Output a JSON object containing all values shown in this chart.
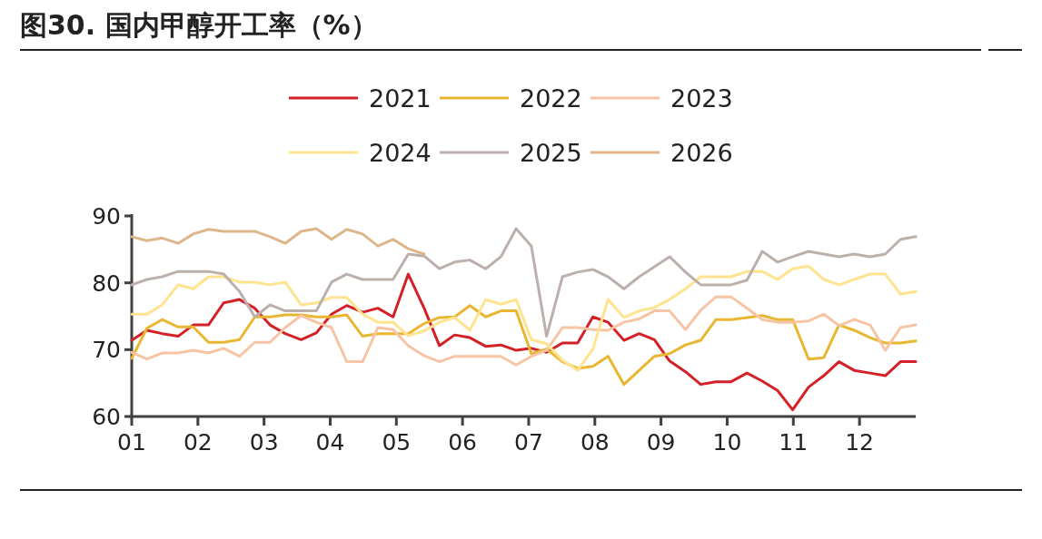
{
  "chart_data": {
    "type": "line",
    "title": "图30. 国内甲醇开工率（%）",
    "legend": "top",
    "x": [
      1,
      1.23,
      1.46,
      1.7,
      1.93,
      2.16,
      2.39,
      2.63,
      2.86,
      3.09,
      3.32,
      3.56,
      3.79,
      4.02,
      4.25,
      4.49,
      4.72,
      4.95,
      5.18,
      5.42,
      5.65,
      5.88,
      6.11,
      6.35,
      6.58,
      6.81,
      7.04,
      7.27,
      7.51,
      7.74,
      7.97,
      8.2,
      8.44,
      8.67,
      8.9,
      9.13,
      9.37,
      9.6,
      9.83,
      10.06,
      10.3,
      10.53,
      10.76,
      10.99,
      11.23,
      11.46,
      11.69,
      11.92,
      12.16,
      12.39,
      12.62,
      12.85
    ],
    "xlim": [
      1,
      12.85
    ],
    "xticks": [
      {
        "value": 1,
        "label": "01"
      },
      {
        "value": 2,
        "label": "02"
      },
      {
        "value": 3,
        "label": "03"
      },
      {
        "value": 4,
        "label": "04"
      },
      {
        "value": 5,
        "label": "05"
      },
      {
        "value": 6,
        "label": "06"
      },
      {
        "value": 7,
        "label": "07"
      },
      {
        "value": 8,
        "label": "08"
      },
      {
        "value": 9,
        "label": "09"
      },
      {
        "value": 10,
        "label": "10"
      },
      {
        "value": 11,
        "label": "11"
      },
      {
        "value": 12,
        "label": "12"
      }
    ],
    "ylim": [
      60,
      90
    ],
    "yticks": [
      60,
      70,
      80,
      90
    ],
    "series": [
      {
        "name": "2021",
        "color": "#d42027",
        "values": [
          71.4,
          72.9,
          72.4,
          72.0,
          73.7,
          73.7,
          77.0,
          77.5,
          76.2,
          73.7,
          72.4,
          71.5,
          72.5,
          75.3,
          76.6,
          75.6,
          76.2,
          74.9,
          81.3,
          76.2,
          70.6,
          72.2,
          71.8,
          70.5,
          70.7,
          69.9,
          70.2,
          69.6,
          71.0,
          71.0,
          74.9,
          74.1,
          71.4,
          72.4,
          71.5,
          68.3,
          66.7,
          64.8,
          65.2,
          65.2,
          66.5,
          65.3,
          63.9,
          61.0,
          64.4,
          66.1,
          68.2,
          66.9,
          66.5,
          66.1,
          68.2,
          68.2
        ]
      },
      {
        "name": "2022",
        "color": "#e8b631",
        "values": [
          68.7,
          73.2,
          74.5,
          73.4,
          73.4,
          71.1,
          71.1,
          71.5,
          74.9,
          74.9,
          75.2,
          75.2,
          74.9,
          74.9,
          75.2,
          72.0,
          72.4,
          72.4,
          72.4,
          73.9,
          74.8,
          74.9,
          76.6,
          74.9,
          75.8,
          75.8,
          69.4,
          70.1,
          68.2,
          67.2,
          67.5,
          69.0,
          64.8,
          66.9,
          69.0,
          69.4,
          70.7,
          71.4,
          74.5,
          74.5,
          74.8,
          75.1,
          74.5,
          74.5,
          68.6,
          68.8,
          73.7,
          72.9,
          71.8,
          71.0,
          71.0,
          71.3
        ]
      },
      {
        "name": "2023",
        "color": "#f7c4a5",
        "values": [
          69.6,
          68.6,
          69.5,
          69.5,
          69.9,
          69.5,
          70.2,
          69.0,
          71.1,
          71.1,
          73.3,
          75.1,
          74.1,
          73.3,
          68.2,
          68.2,
          73.3,
          73.0,
          70.6,
          69.1,
          68.2,
          69.0,
          69.0,
          69.0,
          69.0,
          67.7,
          69.0,
          69.9,
          73.3,
          73.3,
          73.0,
          72.9,
          74.1,
          74.6,
          75.8,
          75.8,
          73.0,
          75.9,
          77.9,
          77.9,
          76.2,
          74.5,
          74.1,
          74.1,
          74.3,
          75.3,
          73.6,
          74.5,
          73.7,
          69.9,
          73.3,
          73.7
        ]
      },
      {
        "name": "2024",
        "color": "#ffe38f",
        "values": [
          75.3,
          75.3,
          76.7,
          79.7,
          79.1,
          80.9,
          80.9,
          80.1,
          80.1,
          79.7,
          80.1,
          76.7,
          77.0,
          77.8,
          77.8,
          75.3,
          74.1,
          74.1,
          72.1,
          72.8,
          74.1,
          74.8,
          72.9,
          77.5,
          76.8,
          77.5,
          71.5,
          70.9,
          68.4,
          66.9,
          70.1,
          77.5,
          74.8,
          75.8,
          76.3,
          77.5,
          79.1,
          80.9,
          80.9,
          80.9,
          81.7,
          81.7,
          80.5,
          82.1,
          82.5,
          80.5,
          79.7,
          80.5,
          81.3,
          81.3,
          78.3,
          78.7
        ]
      },
      {
        "name": "2025",
        "color": "#bcb0ad",
        "values": [
          79.7,
          80.5,
          80.9,
          81.7,
          81.7,
          81.7,
          81.3,
          78.7,
          74.9,
          76.7,
          75.8,
          75.8,
          75.8,
          80.1,
          81.3,
          80.5,
          80.5,
          80.5,
          84.3,
          84.0,
          82.1,
          83.1,
          83.4,
          82.1,
          83.9,
          88.1,
          85.5,
          72.0,
          80.9,
          81.6,
          82.0,
          80.9,
          79.1,
          80.9,
          82.4,
          83.9,
          81.6,
          79.7,
          79.7,
          79.7,
          80.4,
          84.7,
          83.1,
          83.9,
          84.7,
          84.3,
          83.9,
          84.3,
          83.9,
          84.3,
          86.5,
          86.9
        ]
      },
      {
        "name": "2026",
        "color": "#ddb68a",
        "x": [
          1,
          1.23,
          1.46,
          1.7,
          1.93,
          2.16,
          2.39,
          2.63,
          2.86,
          3.09,
          3.32,
          3.56,
          3.79,
          4.02,
          4.25,
          4.49,
          4.72,
          4.95,
          5.18,
          5.42
        ],
        "values": [
          86.9,
          86.3,
          86.7,
          85.9,
          87.3,
          88.0,
          87.7,
          87.7,
          87.7,
          86.9,
          85.9,
          87.7,
          88.1,
          86.5,
          88.0,
          87.3,
          85.5,
          86.5,
          85.1,
          84.3
        ]
      }
    ]
  }
}
